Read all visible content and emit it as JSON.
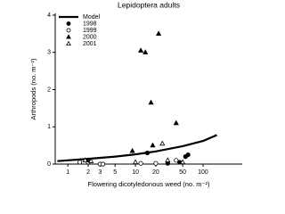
{
  "chart_data": {
    "type": "scatter",
    "title": "Lepidoptera adults",
    "x_label": "Flowering dicotyledonous weed (no. m⁻²)",
    "y_label": "Arthropods (no. m⁻²)",
    "log_x": true,
    "legend": "upper left",
    "xlim": [
      0.65,
      380
    ],
    "xticks": [
      1,
      2,
      3,
      5,
      10,
      20,
      50,
      100
    ],
    "ylim": [
      0,
      4
    ],
    "yticks": [
      0,
      1,
      2,
      3,
      4
    ],
    "series": [
      {
        "name": "Model",
        "kind": "line",
        "color": "#000000",
        "x": [
          0.7,
          1,
          2,
          5,
          10,
          20,
          50,
          100,
          160
        ],
        "values": [
          0.08,
          0.1,
          0.14,
          0.2,
          0.26,
          0.34,
          0.48,
          0.62,
          0.78
        ]
      },
      {
        "name": "1998",
        "kind": "marker",
        "marker": "circle",
        "filled": true,
        "color": "#000000",
        "x": [
          15,
          30,
          45,
          55,
          60
        ],
        "values": [
          0.3,
          0.02,
          0.05,
          0.2,
          0.25
        ]
      },
      {
        "name": "1999",
        "kind": "marker",
        "marker": "circle",
        "filled": false,
        "color": "#000000",
        "x": [
          1.5,
          2,
          3,
          3.3,
          12,
          20,
          40
        ],
        "values": [
          0.05,
          0.05,
          0,
          0,
          0.02,
          0.02,
          0.1
        ]
      },
      {
        "name": "2000",
        "kind": "marker",
        "marker": "triangle",
        "filled": true,
        "color": "#000000",
        "x": [
          2,
          9,
          12,
          14,
          17,
          18,
          22,
          40
        ],
        "values": [
          0.1,
          0.35,
          3.05,
          3.0,
          1.65,
          0.5,
          3.5,
          1.1
        ]
      },
      {
        "name": "2001",
        "kind": "marker",
        "marker": "triangle",
        "filled": false,
        "color": "#000000",
        "x": [
          1.8,
          2.2,
          10,
          25,
          30,
          50
        ],
        "values": [
          0.1,
          0.08,
          0.05,
          0.55,
          0.1,
          0.05
        ]
      }
    ]
  }
}
